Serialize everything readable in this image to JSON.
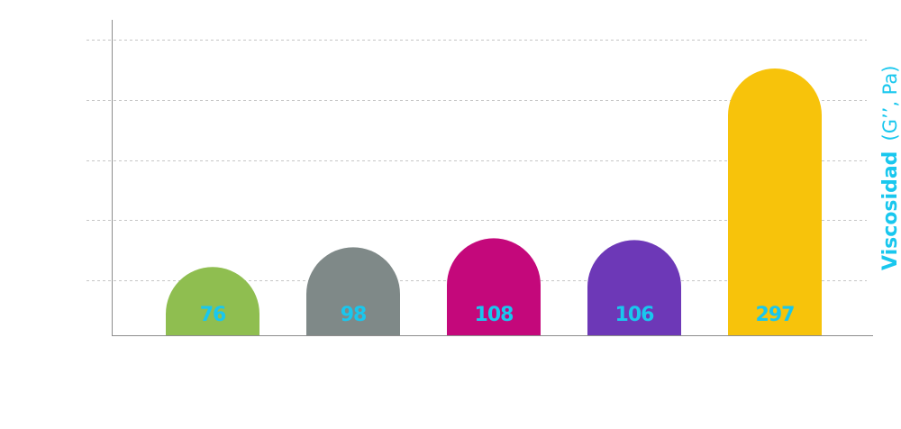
{
  "chart_data": {
    "type": "bar",
    "categories": [
      "",
      "",
      "",
      "",
      ""
    ],
    "values": [
      76,
      98,
      108,
      106,
      297
    ],
    "value_labels": [
      "76",
      "98",
      "108",
      "106",
      "297"
    ],
    "colors": [
      "#8fbe50",
      "#7f8988",
      "#c4087b",
      "#6d38b7",
      "#f7c30b"
    ],
    "label_color": "#19c7ee",
    "ylabel_bold": "Viscosidad",
    "ylabel_light": "(G’’, Pa)",
    "ylabel_color": "#19c7ee",
    "grid": true,
    "bar_shape": "rounded-top",
    "note": ""
  }
}
